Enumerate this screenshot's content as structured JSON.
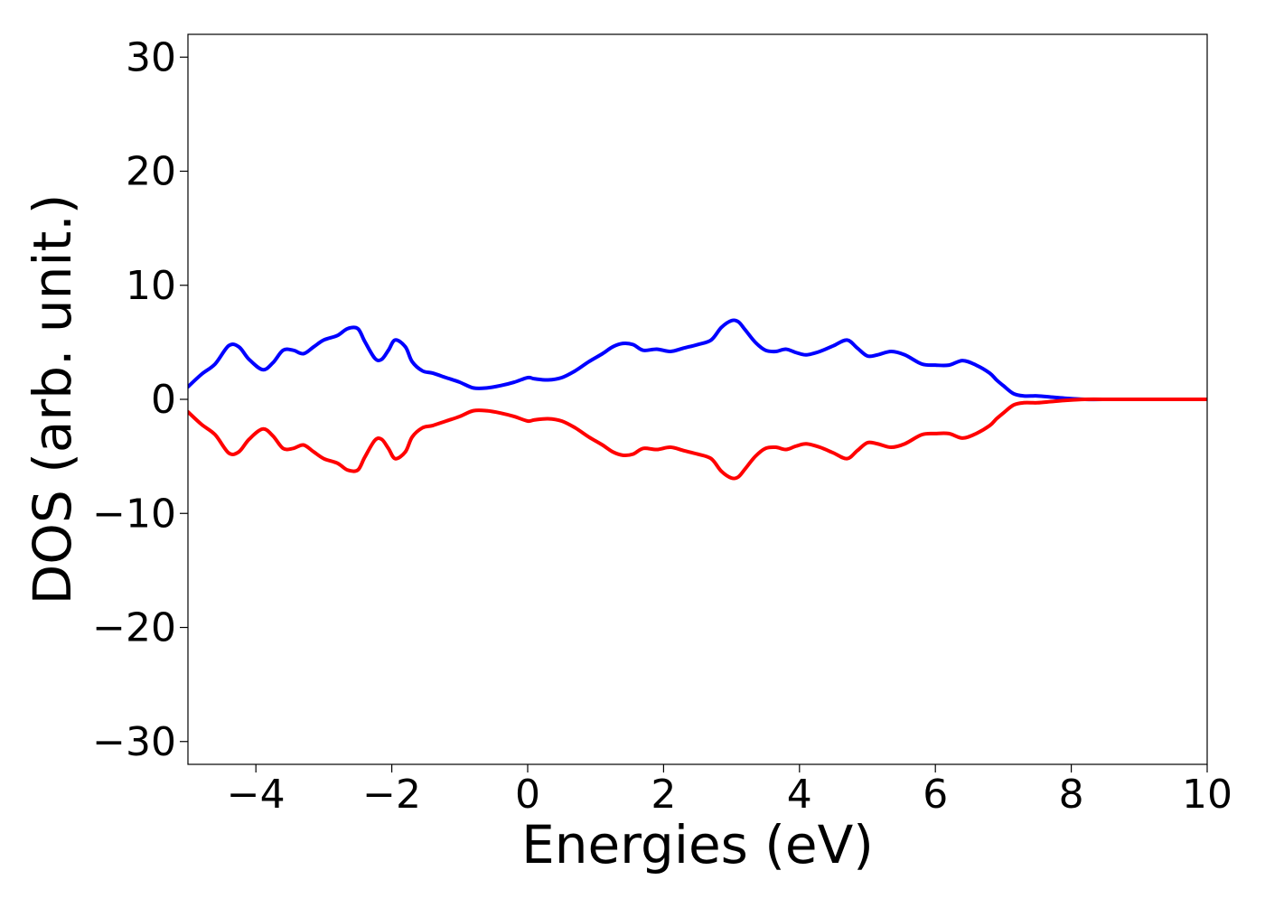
{
  "chart_data": {
    "type": "line",
    "title": "",
    "xlabel": "Energies (eV)",
    "ylabel": "DOS (arb. unit.)",
    "xlim": [
      -5,
      10
    ],
    "ylim": [
      -32,
      32
    ],
    "xticks": [
      -4,
      -2,
      0,
      2,
      4,
      6,
      8,
      10
    ],
    "xtick_labels": [
      "−4",
      "−2",
      "0",
      "2",
      "4",
      "6",
      "8",
      "10"
    ],
    "yticks": [
      30,
      20,
      10,
      0,
      -10,
      -20,
      -30
    ],
    "ytick_labels": [
      "30",
      "20",
      "10",
      "0",
      "−10",
      "−20",
      "−30"
    ],
    "grid": false,
    "legend": "none",
    "series": [
      {
        "color": "#0000ff",
        "x": [
          -5.0,
          -4.8,
          -4.6,
          -4.4,
          -4.25,
          -4.1,
          -3.9,
          -3.75,
          -3.6,
          -3.45,
          -3.3,
          -3.15,
          -3.0,
          -2.8,
          -2.65,
          -2.5,
          -2.4,
          -2.25,
          -2.15,
          -2.05,
          -1.95,
          -1.8,
          -1.7,
          -1.55,
          -1.4,
          -1.2,
          -1.0,
          -0.8,
          -0.6,
          -0.4,
          -0.2,
          0.0,
          0.1,
          0.3,
          0.5,
          0.7,
          0.9,
          1.1,
          1.25,
          1.4,
          1.55,
          1.7,
          1.9,
          2.1,
          2.3,
          2.5,
          2.7,
          2.85,
          3.0,
          3.1,
          3.2,
          3.35,
          3.5,
          3.65,
          3.8,
          3.95,
          4.1,
          4.3,
          4.5,
          4.7,
          4.85,
          5.0,
          5.15,
          5.35,
          5.55,
          5.8,
          6.0,
          6.2,
          6.4,
          6.6,
          6.8,
          6.9,
          7.0,
          7.15,
          7.3,
          7.5,
          7.7,
          7.9,
          8.2,
          8.6,
          9.0,
          9.5,
          10.0
        ],
        "y": [
          1.1,
          2.2,
          3.1,
          4.7,
          4.6,
          3.5,
          2.6,
          3.2,
          4.3,
          4.3,
          4.0,
          4.6,
          5.2,
          5.6,
          6.2,
          6.2,
          5.1,
          3.6,
          3.5,
          4.3,
          5.2,
          4.6,
          3.3,
          2.5,
          2.3,
          1.9,
          1.5,
          1.0,
          1.0,
          1.2,
          1.5,
          1.9,
          1.8,
          1.7,
          1.9,
          2.5,
          3.3,
          4.0,
          4.6,
          4.9,
          4.8,
          4.3,
          4.4,
          4.2,
          4.5,
          4.8,
          5.2,
          6.3,
          6.9,
          6.8,
          6.1,
          5.0,
          4.3,
          4.2,
          4.4,
          4.1,
          3.9,
          4.2,
          4.7,
          5.2,
          4.5,
          3.8,
          3.9,
          4.2,
          3.9,
          3.1,
          3.0,
          3.0,
          3.4,
          3.0,
          2.3,
          1.7,
          1.2,
          0.5,
          0.3,
          0.3,
          0.2,
          0.1,
          0.0,
          0.0,
          0.0,
          0.0,
          0.0
        ]
      },
      {
        "color": "#ff0000",
        "x": [
          -5.0,
          -4.8,
          -4.6,
          -4.4,
          -4.25,
          -4.1,
          -3.9,
          -3.75,
          -3.6,
          -3.45,
          -3.3,
          -3.15,
          -3.0,
          -2.8,
          -2.65,
          -2.5,
          -2.4,
          -2.25,
          -2.15,
          -2.05,
          -1.95,
          -1.8,
          -1.7,
          -1.55,
          -1.4,
          -1.2,
          -1.0,
          -0.8,
          -0.6,
          -0.4,
          -0.2,
          0.0,
          0.1,
          0.3,
          0.5,
          0.7,
          0.9,
          1.1,
          1.25,
          1.4,
          1.55,
          1.7,
          1.9,
          2.1,
          2.3,
          2.5,
          2.7,
          2.85,
          3.0,
          3.1,
          3.2,
          3.35,
          3.5,
          3.65,
          3.8,
          3.95,
          4.1,
          4.3,
          4.5,
          4.7,
          4.85,
          5.0,
          5.15,
          5.35,
          5.55,
          5.8,
          6.0,
          6.2,
          6.4,
          6.6,
          6.8,
          6.9,
          7.0,
          7.15,
          7.3,
          7.5,
          7.7,
          7.9,
          8.2,
          8.6,
          9.0,
          9.5,
          10.0
        ],
        "y": [
          -1.1,
          -2.2,
          -3.1,
          -4.7,
          -4.6,
          -3.5,
          -2.6,
          -3.2,
          -4.3,
          -4.3,
          -4.0,
          -4.6,
          -5.2,
          -5.6,
          -6.2,
          -6.2,
          -5.1,
          -3.6,
          -3.5,
          -4.3,
          -5.2,
          -4.6,
          -3.3,
          -2.5,
          -2.3,
          -1.9,
          -1.5,
          -1.0,
          -1.0,
          -1.2,
          -1.5,
          -1.9,
          -1.8,
          -1.7,
          -1.9,
          -2.5,
          -3.3,
          -4.0,
          -4.6,
          -4.9,
          -4.8,
          -4.3,
          -4.4,
          -4.2,
          -4.5,
          -4.8,
          -5.2,
          -6.3,
          -6.9,
          -6.8,
          -6.1,
          -5.0,
          -4.3,
          -4.2,
          -4.4,
          -4.1,
          -3.9,
          -4.2,
          -4.7,
          -5.2,
          -4.5,
          -3.8,
          -3.9,
          -4.2,
          -3.9,
          -3.1,
          -3.0,
          -3.0,
          -3.4,
          -3.0,
          -2.3,
          -1.7,
          -1.2,
          -0.5,
          -0.3,
          -0.3,
          -0.2,
          -0.1,
          0.0,
          0.0,
          0.0,
          0.0,
          0.0
        ]
      }
    ]
  }
}
